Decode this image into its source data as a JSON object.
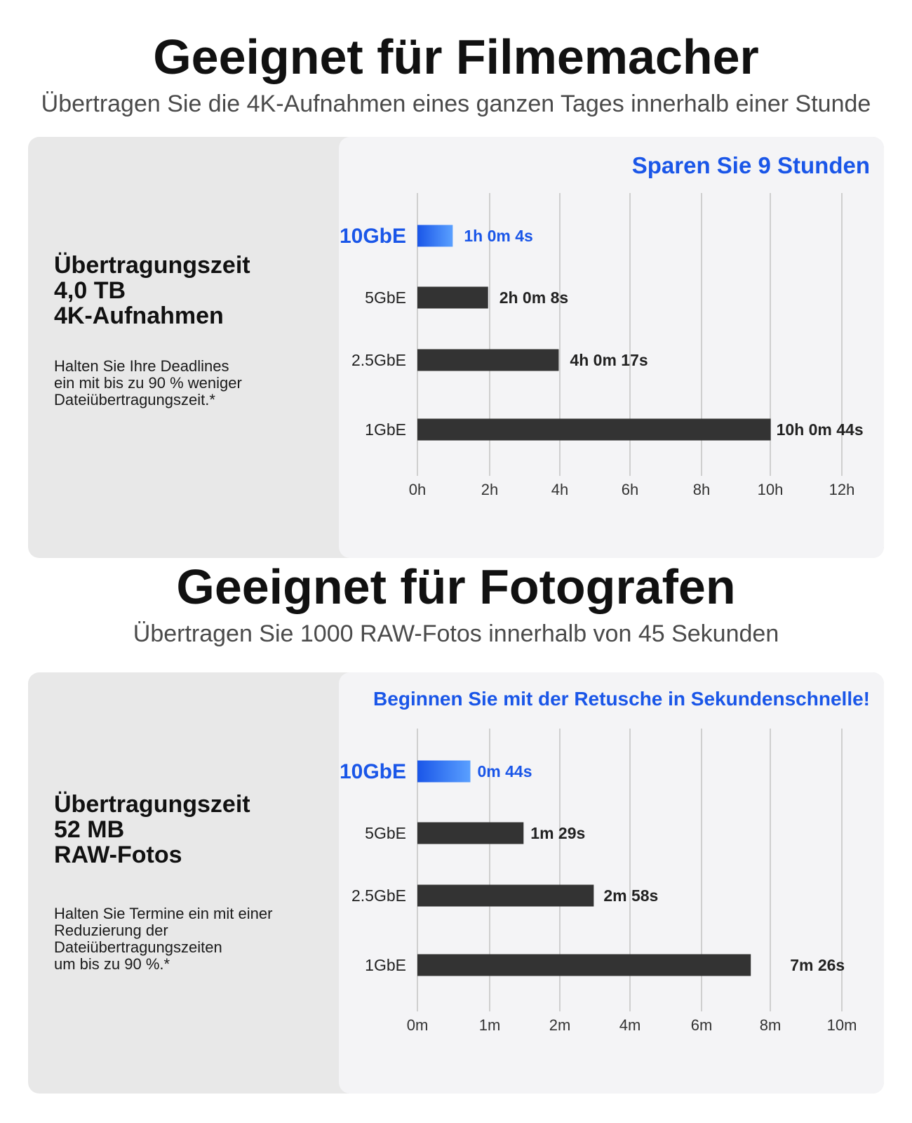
{
  "sections": [
    {
      "title": "Geeignet für Filmemacher",
      "subtitle": "Übertragen Sie die 4K-Aufnahmen eines ganzen Tages innerhalb einer Stunde",
      "card": {
        "heading": [
          "Übertragungszeit",
          "4,0 TB",
          "4K-Aufnahmen"
        ],
        "text": [
          "Halten Sie Ihre Deadlines",
          "ein mit bis zu 90 % weniger",
          "Dateiübertragungszeit.*"
        ]
      }
    },
    {
      "title": "Geeignet für Fotografen",
      "subtitle": "Übertragen Sie 1000 RAW-Fotos innerhalb von 45 Sekunden",
      "card": {
        "heading": [
          "Übertragungszeit",
          "52 MB",
          "RAW-Fotos"
        ],
        "text": [
          "Halten Sie Termine ein mit einer",
          "Reduzierung der",
          "Dateiübertragungszeiten",
          "um bis zu 90 %.*"
        ]
      }
    }
  ],
  "colors": {
    "accent": "#1a56e8",
    "accent_light": "#5aa0ff",
    "bar": "#333333",
    "grid": "#cfcfcf"
  },
  "chart_data": [
    {
      "type": "bar",
      "orientation": "horizontal",
      "title": "Sparen Sie 9 Stunden",
      "categories": [
        "10GbE",
        "5GbE",
        "2.5GbE",
        "1GbE"
      ],
      "values_hours": [
        1.0011,
        2.0022,
        4.0047,
        10.0122
      ],
      "value_labels": [
        "1h 0m 4s",
        "2h 0m 8s",
        "4h 0m 17s",
        "10h 0m 44s"
      ],
      "highlight": "10GbE",
      "xticks": [
        "0h",
        "2h",
        "4h",
        "6h",
        "8h",
        "10h",
        "12h"
      ],
      "xlim": [
        0,
        12
      ],
      "grid": true
    },
    {
      "type": "bar",
      "orientation": "horizontal",
      "title": "Beginnen Sie mit der Retusche in Sekundenschnelle!",
      "categories": [
        "10GbE",
        "5GbE",
        "2.5GbE",
        "1GbE"
      ],
      "values_minutes": [
        0.733,
        1.483,
        2.967,
        7.433
      ],
      "value_labels": [
        "0m 44s",
        "1m 29s",
        "2m 58s",
        "7m 26s"
      ],
      "highlight": "10GbE",
      "xticks": [
        "0m",
        "1m",
        "2m",
        "4m",
        "6m",
        "8m",
        "10m"
      ],
      "grid": true
    }
  ]
}
